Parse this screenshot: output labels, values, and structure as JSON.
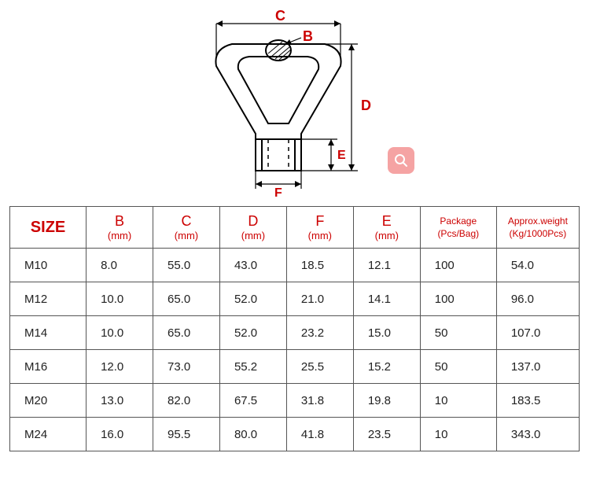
{
  "diagram": {
    "labels": {
      "B": "B",
      "C": "C",
      "D": "D",
      "E": "E",
      "F": "F"
    },
    "label_color": "#cc0000",
    "line_color": "#000000"
  },
  "search_icon": {
    "background": "#f5a3a3",
    "stroke": "#ffffff"
  },
  "table": {
    "header_color": "#cc0000",
    "border_color": "#555555",
    "text_color": "#222222",
    "columns": [
      {
        "main": "SIZE"
      },
      {
        "main": "B",
        "sub": "(mm)"
      },
      {
        "main": "C",
        "sub": "(mm)"
      },
      {
        "main": "D",
        "sub": "(mm)"
      },
      {
        "main": "F",
        "sub": "(mm)"
      },
      {
        "main": "E",
        "sub": "(mm)"
      },
      {
        "main": "Package",
        "sub": "(Pcs/Bag)"
      },
      {
        "main": "Approx.weight",
        "sub": "(Kg/1000Pcs)"
      }
    ],
    "rows": [
      [
        "M10",
        "8.0",
        "55.0",
        "43.0",
        "18.5",
        "12.1",
        "100",
        "54.0"
      ],
      [
        "M12",
        "10.0",
        "65.0",
        "52.0",
        "21.0",
        "14.1",
        "100",
        "96.0"
      ],
      [
        "M14",
        "10.0",
        "65.0",
        "52.0",
        "23.2",
        "15.0",
        "50",
        "107.0"
      ],
      [
        "M16",
        "12.0",
        "73.0",
        "55.2",
        "25.5",
        "15.2",
        "50",
        "137.0"
      ],
      [
        "M20",
        "13.0",
        "82.0",
        "67.5",
        "31.8",
        "19.8",
        "10",
        "183.5"
      ],
      [
        "M24",
        "16.0",
        "95.5",
        "80.0",
        "41.8",
        "23.5",
        "10",
        "343.0"
      ]
    ]
  }
}
